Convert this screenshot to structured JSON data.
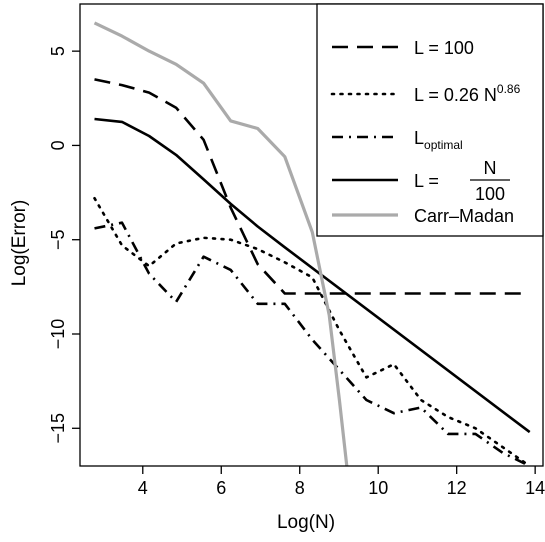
{
  "chart_data": {
    "type": "line",
    "xlabel": "Log(N)",
    "ylabel": "Log(Error)",
    "xlim": [
      2.4,
      14.2
    ],
    "ylim": [
      -17,
      7.5
    ],
    "xticks": [
      4,
      6,
      8,
      10,
      12,
      14
    ],
    "yticks": [
      5,
      0,
      -5,
      -10,
      -15
    ],
    "grid": false,
    "legend_position": "top-right",
    "series": [
      {
        "name": "L =  100",
        "style": "dashed",
        "color": "#000000",
        "x": [
          2.77,
          3.47,
          4.16,
          4.85,
          5.55,
          6.24,
          6.93,
          7.62,
          13.86
        ],
        "y": [
          3.5,
          3.2,
          2.8,
          2.0,
          0.3,
          -3.3,
          -6.3,
          -7.85,
          -7.85
        ]
      },
      {
        "name": "L = 0.26 N^0.86",
        "style": "dotted",
        "color": "#000000",
        "x": [
          2.77,
          3.47,
          4.16,
          4.85,
          5.55,
          6.24,
          6.93,
          7.62,
          8.32,
          9.01,
          9.7,
          10.4,
          11.09,
          11.78,
          12.48,
          13.17,
          13.86
        ],
        "y": [
          -2.8,
          -5.3,
          -6.4,
          -5.2,
          -4.9,
          -5.0,
          -5.5,
          -6.2,
          -7.0,
          -9.8,
          -12.3,
          -11.6,
          -13.5,
          -14.4,
          -15.0,
          -16.0,
          -17.0
        ]
      },
      {
        "name": "L_optimal",
        "style": "dashdot",
        "color": "#000000",
        "x": [
          2.77,
          3.47,
          4.16,
          4.85,
          5.55,
          6.24,
          6.93,
          7.62,
          8.32,
          9.01,
          9.7,
          10.4,
          11.09,
          11.78,
          12.48,
          13.17,
          13.86
        ],
        "y": [
          -4.4,
          -4.1,
          -6.8,
          -8.3,
          -5.9,
          -6.6,
          -8.4,
          -8.4,
          -10.3,
          -11.9,
          -13.5,
          -14.2,
          -13.9,
          -15.3,
          -15.3,
          -16.3,
          -17.0
        ]
      },
      {
        "name": "L = N/100",
        "style": "solid",
        "color": "#000000",
        "x": [
          2.77,
          3.47,
          4.16,
          4.85,
          5.55,
          6.24,
          6.93,
          7.62,
          13.86
        ],
        "y": [
          1.4,
          1.25,
          0.5,
          -0.5,
          -1.8,
          -3.1,
          -4.3,
          -5.4,
          -15.2
        ]
      },
      {
        "name": "Carr–Madan",
        "style": "solid",
        "color": "#aaaaaa",
        "x": [
          2.77,
          3.47,
          4.16,
          4.85,
          5.55,
          6.24,
          6.93,
          7.62,
          8.32,
          8.75,
          9.01,
          9.2
        ],
        "y": [
          6.5,
          5.8,
          5.0,
          4.3,
          3.3,
          1.3,
          0.9,
          -0.6,
          -4.6,
          -9.0,
          -13.5,
          -17.0
        ]
      }
    ],
    "legend": [
      {
        "key": "L =  100",
        "prefix": "L =  100"
      },
      {
        "key": "L = 0.26 N^0.86",
        "prefix": "L = 0.26 N",
        "sup": "0.86"
      },
      {
        "key": "L_optimal",
        "prefix": "L",
        "sub": "optimal"
      },
      {
        "key": "L = N/100",
        "prefix": "L = ",
        "num": "N",
        "den": "100"
      },
      {
        "key": "Carr–Madan",
        "prefix": "Carr–Madan"
      }
    ]
  }
}
